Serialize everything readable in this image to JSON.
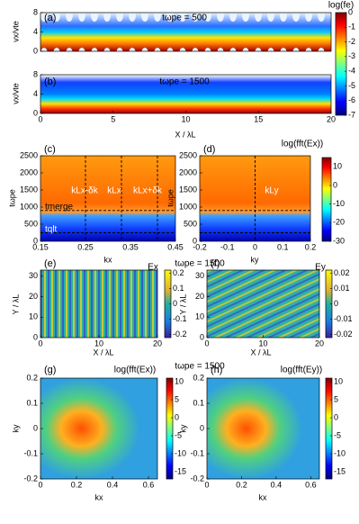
{
  "chart_data": [
    {
      "type": "heatmap",
      "label": "(a)",
      "title": "tωpe = 500",
      "ylabel": "vx/vte",
      "ylim": [
        0,
        8
      ],
      "yticks": [
        0,
        4,
        8
      ],
      "colorbar": {
        "label": "log(fe)",
        "lim": [
          -7,
          0
        ],
        "ticks": [
          0,
          -1,
          -2,
          -3,
          -4,
          -5,
          -6,
          -7
        ]
      }
    },
    {
      "type": "heatmap",
      "label": "(b)",
      "title": "tωpe = 1500",
      "ylabel": "vx/vte",
      "xlabel": "X / λL",
      "xlim": [
        0,
        20
      ],
      "xticks": [
        0,
        5,
        10,
        15,
        20
      ],
      "ylim": [
        0,
        8
      ],
      "yticks": [
        0,
        4,
        8
      ]
    },
    {
      "type": "heatmap",
      "label": "(c)",
      "ylabel": "tωpe",
      "xlabel": "kx",
      "xlim": [
        0.15,
        0.45
      ],
      "xticks": [
        0.15,
        0.25,
        0.35,
        0.45
      ],
      "ylim": [
        0,
        2500
      ],
      "yticks": [
        0,
        500,
        1000,
        1500,
        2000,
        2500
      ],
      "annotations": [
        "kLx-δk",
        "kLx",
        "kLx+δk",
        "tmerge",
        "tqlt"
      ],
      "vlines": [
        0.25,
        0.33,
        0.41
      ],
      "hlines": [
        900,
        250
      ]
    },
    {
      "type": "heatmap",
      "label": "(d)",
      "ylabel": "tωpe",
      "xlabel": "ky",
      "xlim": [
        -0.2,
        0.2
      ],
      "xticks": [
        -0.2,
        -0.1,
        0,
        0.1,
        0.2
      ],
      "ylim": [
        0,
        2500
      ],
      "yticks": [
        0,
        500,
        1000,
        1500,
        2000,
        2500
      ],
      "annotations": [
        "kLy"
      ],
      "vlines": [
        0
      ],
      "hlines": [
        900,
        250
      ],
      "colorbar": {
        "label": "log(fft(Ex))",
        "lim": [
          -30,
          15
        ],
        "ticks": [
          10,
          0,
          -10,
          -20,
          -30
        ]
      }
    },
    {
      "type": "heatmap",
      "label": "(e)",
      "title": "tωpe = 1500",
      "ylabel": "Y / λL",
      "xlabel": "X / λL",
      "xlim": [
        0,
        20
      ],
      "xticks": [
        0,
        10,
        20
      ],
      "ylim": [
        0,
        33
      ],
      "yticks": [
        0,
        10,
        20,
        30
      ],
      "colorbar": {
        "label": "Ex",
        "lim": [
          -0.22,
          0.22
        ],
        "ticks": [
          0.2,
          0.1,
          0,
          -0.1,
          -0.2
        ]
      }
    },
    {
      "type": "heatmap",
      "label": "(f)",
      "ylabel": "Y / λL",
      "xlabel": "X / λL",
      "xlim": [
        0,
        20
      ],
      "xticks": [
        0,
        10,
        20
      ],
      "ylim": [
        0,
        33
      ],
      "yticks": [
        0,
        10,
        20,
        30
      ],
      "colorbar": {
        "label": "Ey",
        "lim": [
          -0.022,
          0.022
        ],
        "ticks": [
          0.02,
          0.01,
          0,
          -0.01,
          -0.02
        ]
      }
    },
    {
      "type": "heatmap",
      "label": "(g)",
      "title": "tωpe = 1500",
      "ylabel": "ky",
      "xlabel": "kx",
      "xlim": [
        0,
        0.65
      ],
      "xticks": [
        0,
        0.2,
        0.4,
        0.6
      ],
      "ylim": [
        -0.2,
        0.2
      ],
      "yticks": [
        -0.2,
        -0.1,
        0,
        0.1,
        0.2
      ],
      "colorbar": {
        "label": "log(fft(Ex))",
        "lim": [
          -17,
          11
        ],
        "ticks": [
          10,
          5,
          0,
          -5,
          -10,
          -15
        ]
      }
    },
    {
      "type": "heatmap",
      "label": "(h)",
      "ylabel": "ky",
      "xlabel": "kx",
      "xlim": [
        0,
        0.65
      ],
      "xticks": [
        0,
        0.2,
        0.4,
        0.6
      ],
      "ylim": [
        -0.2,
        0.2
      ],
      "yticks": [
        -0.2,
        -0.1,
        0,
        0.1,
        0.2
      ],
      "colorbar": {
        "label": "log(fft(Ey))",
        "lim": [
          -17,
          11
        ],
        "ticks": [
          10,
          5,
          0,
          -5,
          -10,
          -15
        ]
      }
    }
  ]
}
